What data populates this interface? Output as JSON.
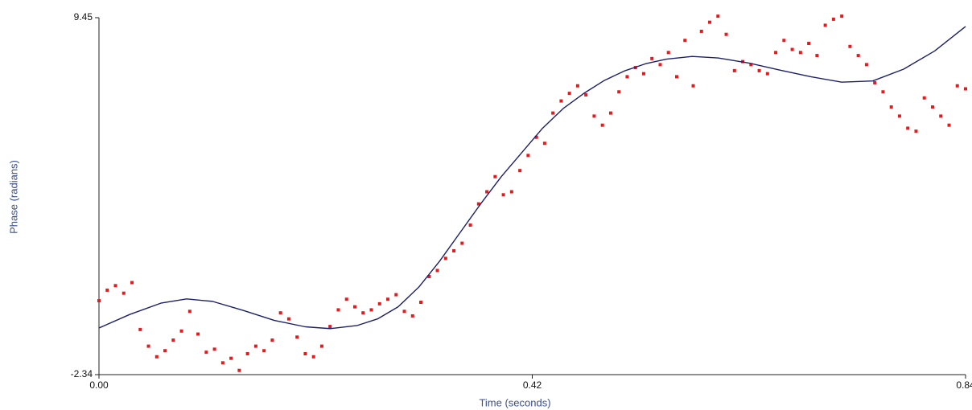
{
  "chart_data": {
    "type": "scatter",
    "x_label": "Time (seconds)",
    "y_label": "Phase (radians)",
    "xlim": [
      0,
      0.84
    ],
    "ylim": [
      -2.34,
      9.45
    ],
    "xticks": [
      {
        "value": 0,
        "label": "0.00"
      },
      0.42,
      0.84
    ],
    "yticks": [
      -2.34,
      9.45
    ],
    "series": [
      {
        "type": "scatter",
        "color": "#e8191c",
        "x": [
          0,
          0.008,
          0.016,
          0.024,
          0.032,
          0.04,
          0.048,
          0.056,
          0.064,
          0.072,
          0.08,
          0.088,
          0.096,
          0.104,
          0.112,
          0.12,
          0.128,
          0.136,
          0.144,
          0.152,
          0.16,
          0.168,
          0.176,
          0.184,
          0.192,
          0.2,
          0.208,
          0.216,
          0.224,
          0.232,
          0.24,
          0.248,
          0.256,
          0.264,
          0.272,
          0.28,
          0.288,
          0.296,
          0.304,
          0.312,
          0.32,
          0.328,
          0.336,
          0.344,
          0.352,
          0.36,
          0.368,
          0.376,
          0.384,
          0.392,
          0.4,
          0.408,
          0.416,
          0.424,
          0.432,
          0.44,
          0.448,
          0.456,
          0.464,
          0.472,
          0.48,
          0.488,
          0.496,
          0.504,
          0.512,
          0.52,
          0.528,
          0.536,
          0.544,
          0.552,
          0.56,
          0.568,
          0.576,
          0.584,
          0.592,
          0.6,
          0.608,
          0.616,
          0.624,
          0.632,
          0.64,
          0.648,
          0.656,
          0.664,
          0.672,
          0.68,
          0.688,
          0.696,
          0.704,
          0.712,
          0.72,
          0.728,
          0.736,
          0.744,
          0.752,
          0.76,
          0.768,
          0.776,
          0.784,
          0.792,
          0.8,
          0.808,
          0.816,
          0.824,
          0.832,
          0.84
        ],
        "values": [
          0.1,
          0.45,
          0.6,
          0.35,
          0.7,
          -0.85,
          -1.4,
          -1.75,
          -1.55,
          -1.2,
          -0.9,
          -0.25,
          -1.0,
          -1.6,
          -1.5,
          -1.95,
          -1.8,
          -2.2,
          -1.65,
          -1.4,
          -1.55,
          -1.2,
          -0.3,
          -0.5,
          -1.1,
          -1.65,
          -1.75,
          -1.4,
          -0.75,
          -0.2,
          0.15,
          -0.1,
          -0.3,
          -0.2,
          0.0,
          0.15,
          0.3,
          -0.25,
          -0.4,
          0.05,
          0.9,
          1.1,
          1.5,
          1.75,
          2.0,
          2.6,
          3.3,
          3.7,
          4.2,
          3.6,
          3.7,
          4.4,
          4.9,
          5.5,
          5.3,
          6.3,
          6.7,
          6.95,
          7.2,
          6.9,
          6.2,
          5.9,
          6.3,
          7.0,
          7.5,
          7.8,
          7.6,
          8.1,
          7.9,
          8.3,
          7.5,
          8.7,
          7.2,
          9.0,
          9.3,
          9.5,
          8.9,
          7.7,
          8.0,
          7.9,
          7.7,
          7.6,
          8.3,
          8.7,
          8.4,
          8.3,
          8.6,
          8.2,
          9.2,
          9.4,
          9.5,
          8.5,
          8.2,
          7.9,
          7.3,
          7.0,
          6.5,
          6.2,
          5.8,
          5.7,
          6.8,
          6.5,
          6.2,
          5.9,
          7.2,
          7.1
        ]
      },
      {
        "type": "line",
        "color": "#1c1f6b",
        "x": [
          0,
          0.03,
          0.06,
          0.085,
          0.11,
          0.14,
          0.17,
          0.2,
          0.224,
          0.25,
          0.27,
          0.29,
          0.31,
          0.33,
          0.35,
          0.37,
          0.39,
          0.41,
          0.43,
          0.45,
          0.47,
          0.49,
          0.51,
          0.53,
          0.55,
          0.575,
          0.6,
          0.63,
          0.66,
          0.69,
          0.72,
          0.75,
          0.78,
          0.81,
          0.84
        ],
        "values": [
          -0.8,
          -0.35,
          0.02,
          0.16,
          0.08,
          -0.22,
          -0.55,
          -0.76,
          -0.82,
          -0.72,
          -0.5,
          -0.1,
          0.55,
          1.4,
          2.35,
          3.3,
          4.2,
          5.0,
          5.8,
          6.45,
          6.95,
          7.38,
          7.7,
          7.93,
          8.08,
          8.17,
          8.12,
          7.95,
          7.72,
          7.5,
          7.32,
          7.36,
          7.75,
          8.35,
          9.16
        ]
      }
    ]
  }
}
